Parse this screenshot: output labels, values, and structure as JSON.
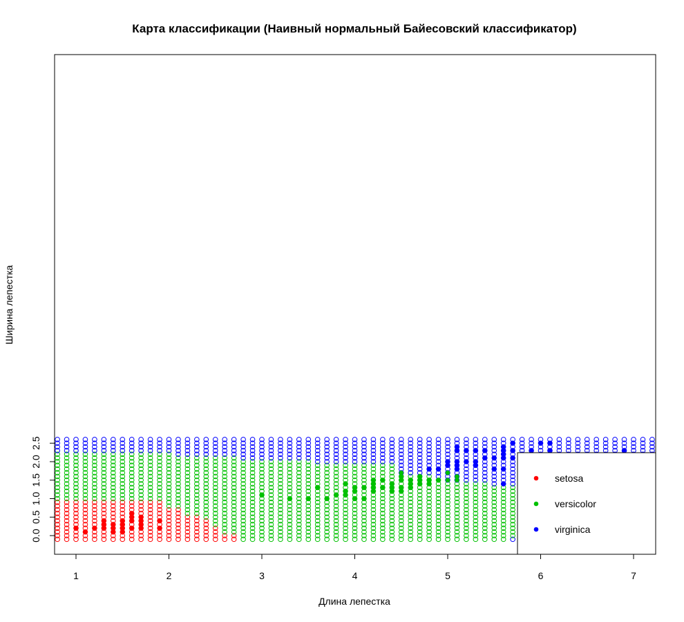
{
  "chart_data": {
    "type": "scatter",
    "title": "Карта классификации (Наивный нормальный Байесовский классификатор)",
    "xlabel": "Длина лепестка",
    "ylabel": "Ширина лепестка",
    "xlim": [
      0.8,
      7.2
    ],
    "ylim": [
      -0.1,
      2.6
    ],
    "x_ticks": [
      "1",
      "2",
      "3",
      "4",
      "5",
      "6",
      "7"
    ],
    "y_ticks": [
      "0.0",
      "0.5",
      "1.0",
      "1.5",
      "2.0",
      "2.5"
    ],
    "grid": false,
    "legend_position": "bottom-right",
    "series": [
      {
        "name": "setosa",
        "color": "#ff0000"
      },
      {
        "name": "versicolor",
        "color": "#00c000"
      },
      {
        "name": "virginica",
        "color": "#0000ff"
      }
    ],
    "classification_grid": {
      "x_start": 0.8,
      "x_end": 7.2,
      "x_step": 0.1,
      "y_start": -0.1,
      "y_end": 2.6,
      "y_step": 0.1,
      "regions_by_row": [
        {
          "y": -0.1,
          "setosa_max": 2.7,
          "virginica_min": 5.7
        },
        {
          "y": 0.0,
          "setosa_max": 2.7,
          "virginica_min": 5.8
        },
        {
          "y": 0.1,
          "setosa_max": 2.5,
          "virginica_min": 5.9
        },
        {
          "y": 0.2,
          "setosa_max": 2.5,
          "virginica_min": 5.9
        },
        {
          "y": 0.3,
          "setosa_max": 2.4,
          "virginica_min": 6.0
        },
        {
          "y": 0.4,
          "setosa_max": 2.4,
          "virginica_min": 6.0
        },
        {
          "y": 0.5,
          "setosa_max": 2.3,
          "virginica_min": 6.1
        },
        {
          "y": 0.6,
          "setosa_max": 2.1,
          "virginica_min": 6.1
        },
        {
          "y": 0.7,
          "setosa_max": 2.1,
          "virginica_min": 6.1
        },
        {
          "y": 0.8,
          "setosa_max": 1.9,
          "virginica_min": 6.1
        },
        {
          "y": 0.9,
          "setosa_max": 1.9,
          "virginica_min": 6.1
        },
        {
          "y": 1.0,
          "setosa_max": null,
          "virginica_min": 6.1
        },
        {
          "y": 1.1,
          "setosa_max": null,
          "virginica_min": 6.1
        },
        {
          "y": 1.2,
          "setosa_max": null,
          "virginica_min": 6.1
        },
        {
          "y": 1.3,
          "setosa_max": null,
          "virginica_min": 6.1
        },
        {
          "y": 1.4,
          "setosa_max": null,
          "virginica_min": 5.5
        },
        {
          "y": 1.5,
          "setosa_max": null,
          "virginica_min": 5.0
        },
        {
          "y": 1.6,
          "setosa_max": null,
          "virginica_min": 4.9
        },
        {
          "y": 1.7,
          "setosa_max": null,
          "virginica_min": 4.5
        },
        {
          "y": 1.8,
          "setosa_max": null,
          "virginica_min": 4.5
        },
        {
          "y": 1.9,
          "setosa_max": null,
          "virginica_min": 4.5
        },
        {
          "y": 2.0,
          "setosa_max": null,
          "virginica_min": 3.6
        },
        {
          "y": 2.1,
          "setosa_max": null,
          "virginica_min": 2.8
        },
        {
          "y": 2.2,
          "setosa_max": null,
          "virginica_min": 2.1
        },
        {
          "y": 2.3,
          "setosa_max": null,
          "virginica_min": 0.8
        },
        {
          "y": 2.4,
          "setosa_max": null,
          "virginica_min": 0.8
        },
        {
          "y": 2.5,
          "setosa_max": null,
          "virginica_min": 0.8
        },
        {
          "y": 2.6,
          "setosa_max": null,
          "virginica_min": 0.8
        }
      ]
    },
    "points": {
      "setosa": [
        [
          1.1,
          0.1
        ],
        [
          1.4,
          0.1
        ],
        [
          1.5,
          0.1
        ],
        [
          1.0,
          0.2
        ],
        [
          1.2,
          0.2
        ],
        [
          1.3,
          0.2
        ],
        [
          1.4,
          0.2
        ],
        [
          1.5,
          0.2
        ],
        [
          1.6,
          0.2
        ],
        [
          1.7,
          0.2
        ],
        [
          1.9,
          0.2
        ],
        [
          1.3,
          0.3
        ],
        [
          1.4,
          0.3
        ],
        [
          1.5,
          0.3
        ],
        [
          1.7,
          0.3
        ],
        [
          1.3,
          0.4
        ],
        [
          1.5,
          0.4
        ],
        [
          1.6,
          0.4
        ],
        [
          1.7,
          0.4
        ],
        [
          1.9,
          0.4
        ],
        [
          1.6,
          0.5
        ],
        [
          1.7,
          0.5
        ],
        [
          1.6,
          0.6
        ]
      ],
      "versicolor": [
        [
          3.3,
          1.0
        ],
        [
          3.5,
          1.0
        ],
        [
          3.7,
          1.0
        ],
        [
          4.0,
          1.0
        ],
        [
          4.1,
          1.0
        ],
        [
          3.0,
          1.1
        ],
        [
          3.8,
          1.1
        ],
        [
          3.9,
          1.1
        ],
        [
          3.9,
          1.2
        ],
        [
          4.0,
          1.2
        ],
        [
          4.2,
          1.2
        ],
        [
          4.4,
          1.2
        ],
        [
          4.5,
          1.2
        ],
        [
          3.6,
          1.3
        ],
        [
          4.0,
          1.3
        ],
        [
          4.1,
          1.3
        ],
        [
          4.2,
          1.3
        ],
        [
          4.3,
          1.3
        ],
        [
          4.4,
          1.3
        ],
        [
          4.5,
          1.3
        ],
        [
          4.6,
          1.3
        ],
        [
          3.9,
          1.4
        ],
        [
          4.2,
          1.4
        ],
        [
          4.4,
          1.4
        ],
        [
          4.6,
          1.4
        ],
        [
          4.7,
          1.4
        ],
        [
          4.8,
          1.4
        ],
        [
          4.2,
          1.5
        ],
        [
          4.3,
          1.5
        ],
        [
          4.5,
          1.5
        ],
        [
          4.6,
          1.5
        ],
        [
          4.7,
          1.5
        ],
        [
          4.8,
          1.5
        ],
        [
          4.9,
          1.5
        ],
        [
          5.0,
          1.5
        ],
        [
          5.1,
          1.5
        ],
        [
          4.5,
          1.6
        ],
        [
          4.7,
          1.6
        ],
        [
          5.1,
          1.6
        ],
        [
          4.5,
          1.7
        ],
        [
          5.0,
          1.7
        ]
      ],
      "virginica": [
        [
          5.6,
          1.4
        ],
        [
          5.8,
          1.6
        ],
        [
          4.8,
          1.8
        ],
        [
          4.9,
          1.8
        ],
        [
          5.1,
          1.8
        ],
        [
          5.5,
          1.8
        ],
        [
          5.6,
          1.8
        ],
        [
          5.8,
          1.8
        ],
        [
          6.0,
          1.8
        ],
        [
          6.1,
          1.8
        ],
        [
          6.3,
          1.8
        ],
        [
          5.0,
          1.9
        ],
        [
          5.1,
          1.9
        ],
        [
          5.3,
          1.9
        ],
        [
          6.1,
          1.9
        ],
        [
          5.0,
          2.0
        ],
        [
          5.1,
          2.0
        ],
        [
          5.2,
          2.0
        ],
        [
          5.3,
          2.0
        ],
        [
          6.4,
          2.0
        ],
        [
          6.7,
          2.0
        ],
        [
          5.4,
          2.1
        ],
        [
          5.5,
          2.1
        ],
        [
          5.6,
          2.1
        ],
        [
          5.7,
          2.1
        ],
        [
          5.9,
          2.1
        ],
        [
          6.6,
          2.1
        ],
        [
          5.6,
          2.2
        ],
        [
          5.8,
          2.2
        ],
        [
          6.7,
          2.2
        ],
        [
          5.1,
          2.3
        ],
        [
          5.2,
          2.3
        ],
        [
          5.3,
          2.3
        ],
        [
          5.4,
          2.3
        ],
        [
          5.6,
          2.3
        ],
        [
          5.7,
          2.3
        ],
        [
          5.9,
          2.3
        ],
        [
          6.1,
          2.3
        ],
        [
          6.9,
          2.3
        ],
        [
          5.1,
          2.4
        ],
        [
          5.6,
          2.4
        ],
        [
          5.7,
          2.5
        ],
        [
          6.0,
          2.5
        ],
        [
          6.1,
          2.5
        ]
      ]
    }
  }
}
